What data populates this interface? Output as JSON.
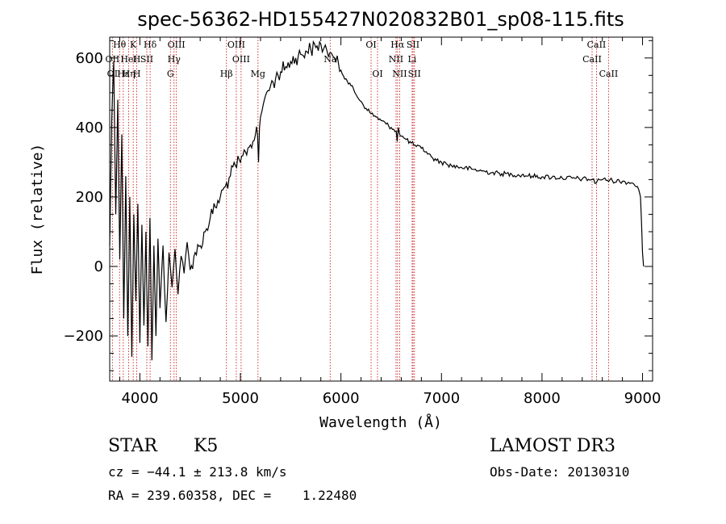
{
  "chart_data": {
    "type": "line",
    "title": "spec-56362-HD155427N020832B01_sp08-115.fits",
    "xlabel": "Wavelength (Å)",
    "ylabel": "Flux (relative)",
    "xlim": [
      3700,
      9100
    ],
    "ylim": [
      -330,
      660
    ],
    "x_ticks": [
      4000,
      5000,
      6000,
      7000,
      8000,
      9000
    ],
    "x_tick_labels": [
      "4000",
      "5000",
      "6000",
      "7000",
      "8000",
      "9000"
    ],
    "y_ticks": [
      -200,
      0,
      200,
      400,
      600
    ],
    "y_tick_labels": [
      "−200",
      "0",
      "200",
      "400",
      "600"
    ],
    "series": [
      {
        "name": "flux",
        "x": [
          3700,
          3720,
          3740,
          3760,
          3780,
          3800,
          3820,
          3840,
          3860,
          3880,
          3900,
          3920,
          3940,
          3960,
          3980,
          4000,
          4020,
          4040,
          4060,
          4080,
          4100,
          4120,
          4140,
          4160,
          4180,
          4200,
          4230,
          4260,
          4290,
          4320,
          4350,
          4380,
          4410,
          4440,
          4470,
          4500,
          4550,
          4600,
          4650,
          4700,
          4750,
          4800,
          4850,
          4900,
          4950,
          5000,
          5050,
          5100,
          5150,
          5170,
          5180,
          5190,
          5200,
          5230,
          5260,
          5300,
          5350,
          5400,
          5450,
          5500,
          5550,
          5600,
          5650,
          5700,
          5750,
          5800,
          5830,
          5860,
          5890,
          5920,
          5950,
          6000,
          6050,
          6100,
          6150,
          6200,
          6250,
          6300,
          6350,
          6400,
          6450,
          6500,
          6550,
          6560,
          6570,
          6580,
          6600,
          6650,
          6700,
          6750,
          6800,
          6850,
          6900,
          6950,
          7000,
          7050,
          7100,
          7200,
          7300,
          7400,
          7500,
          7600,
          7700,
          7800,
          7900,
          8000,
          8100,
          8200,
          8300,
          8400,
          8500,
          8540,
          8560,
          8600,
          8700,
          8800,
          8900,
          8950,
          8980,
          9000,
          9010
        ],
        "y": [
          60,
          420,
          590,
          150,
          480,
          20,
          380,
          -150,
          260,
          -200,
          200,
          -260,
          150,
          -100,
          180,
          -220,
          120,
          -170,
          100,
          -230,
          140,
          -270,
          60,
          -200,
          80,
          -120,
          60,
          -160,
          40,
          -60,
          50,
          -80,
          30,
          -20,
          70,
          -10,
          40,
          60,
          100,
          140,
          170,
          200,
          230,
          260,
          290,
          300,
          330,
          350,
          380,
          380,
          300,
          400,
          430,
          470,
          500,
          520,
          540,
          560,
          575,
          590,
          600,
          610,
          620,
          625,
          630,
          640,
          628,
          622,
          615,
          605,
          590,
          565,
          540,
          520,
          495,
          475,
          455,
          440,
          430,
          420,
          410,
          400,
          390,
          360,
          400,
          385,
          375,
          365,
          355,
          345,
          340,
          330,
          315,
          305,
          300,
          295,
          290,
          285,
          280,
          275,
          270,
          267,
          265,
          263,
          260,
          258,
          257,
          255,
          254,
          252,
          250,
          240,
          252,
          250,
          247,
          245,
          240,
          230,
          200,
          40,
          0
        ]
      }
    ],
    "lines_top": [
      {
        "label": "Hθ",
        "x": 3798
      },
      {
        "label": "K",
        "x": 3934
      },
      {
        "label": "Hδ",
        "x": 4102
      },
      {
        "label": "OIII",
        "x": 4363
      },
      {
        "label": "OIII",
        "x": 4959
      },
      {
        "label": "OI",
        "x": 6300
      },
      {
        "label": "Hα",
        "x": 6563
      },
      {
        "label": "SII",
        "x": 6717
      },
      {
        "label": "CaII",
        "x": 8542
      }
    ],
    "lines_mid": [
      {
        "label": "OII",
        "x": 3727
      },
      {
        "label": "H",
        "x": 3969
      },
      {
        "label": "HeI",
        "x": 3889
      },
      {
        "label": "SII",
        "x": 4069
      },
      {
        "label": "Hγ",
        "x": 4340
      },
      {
        "label": "OIII",
        "x": 5007
      },
      {
        "label": "Na",
        "x": 5893
      },
      {
        "label": "NII",
        "x": 6548
      },
      {
        "label": "Li",
        "x": 6708
      },
      {
        "label": "CaII",
        "x": 8498
      }
    ],
    "lines_low": [
      {
        "label": "OI",
        "x": 3727
      },
      {
        "label": "Hε",
        "x": 3835
      },
      {
        "label": "Hη",
        "x": 3890
      },
      {
        "label": "H",
        "x": 3970
      },
      {
        "label": "G",
        "x": 4304
      },
      {
        "label": "Hβ",
        "x": 4861
      },
      {
        "label": "Mg",
        "x": 5175
      },
      {
        "label": "OI",
        "x": 6364
      },
      {
        "label": "NII",
        "x": 6584
      },
      {
        "label": "SII",
        "x": 6731
      },
      {
        "label": "CaII",
        "x": 8662
      }
    ]
  },
  "info": {
    "object_class": "STAR",
    "subclass": "K5",
    "survey": "LAMOST DR3",
    "cz": "cz = −44.1 ± 213.8 km/s",
    "obs_date": "Obs-Date: 20130310",
    "coords": "RA = 239.60358, DEC =    1.22480"
  }
}
